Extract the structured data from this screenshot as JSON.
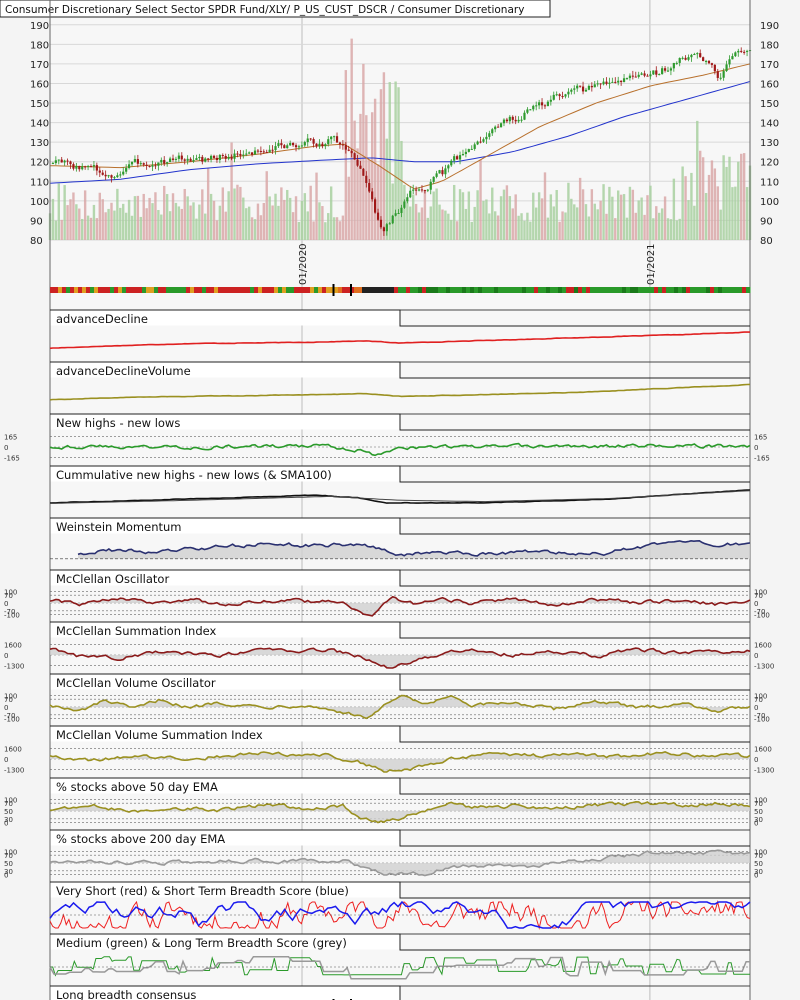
{
  "header": {
    "title": "Consumer Discretionary Select Sector SPDR Fund/XLY/ P_US_CUST_DSCR / Consumer Discretionary"
  },
  "colors": {
    "up_candle": "#2e9a2e",
    "down_candle": "#a01818",
    "vol_up": "#a8d0a0",
    "vol_down": "#d9a8a8",
    "sma_short": "#b8702c",
    "sma_long": "#2233cc",
    "advance_decline": "#e02020",
    "olive": "#9a9020",
    "green": "#2a9a2a",
    "black": "#111111",
    "navy": "#2a3070",
    "maroon": "#8a1a1a",
    "grey": "#999999",
    "blue": "#1a1aee",
    "red": "#ee2020"
  },
  "chart_data": [
    {
      "type": "candlestick",
      "title": "Consumer Discretionary Select Sector SPDR Fund/XLY/ P_US_CUST_DSCR / Consumer Discretionary",
      "ylim": [
        80,
        195
      ],
      "y_ticks": [
        80,
        90,
        100,
        110,
        120,
        130,
        140,
        150,
        160,
        170,
        180,
        190
      ],
      "x_ticks": [
        "01/2020",
        "01/2021"
      ],
      "x_tick_positions": [
        0.36,
        0.857
      ],
      "price_path": [
        [
          0,
          120
        ],
        [
          0.05,
          117
        ],
        [
          0.09,
          113
        ],
        [
          0.13,
          119
        ],
        [
          0.18,
          122
        ],
        [
          0.22,
          121
        ],
        [
          0.27,
          124
        ],
        [
          0.32,
          127
        ],
        [
          0.36,
          129
        ],
        [
          0.4,
          131
        ],
        [
          0.42,
          128
        ],
        [
          0.44,
          118
        ],
        [
          0.46,
          100
        ],
        [
          0.475,
          84
        ],
        [
          0.49,
          92
        ],
        [
          0.52,
          106
        ],
        [
          0.56,
          113
        ],
        [
          0.6,
          128
        ],
        [
          0.64,
          138
        ],
        [
          0.68,
          145
        ],
        [
          0.72,
          152
        ],
        [
          0.76,
          156
        ],
        [
          0.8,
          160
        ],
        [
          0.84,
          164
        ],
        [
          0.87,
          166
        ],
        [
          0.9,
          172
        ],
        [
          0.925,
          174
        ],
        [
          0.945,
          170
        ],
        [
          0.955,
          160
        ],
        [
          0.97,
          170
        ],
        [
          0.985,
          176
        ],
        [
          1.0,
          180
        ]
      ],
      "sma_short_path": [
        [
          0,
          118
        ],
        [
          0.1,
          117
        ],
        [
          0.2,
          120
        ],
        [
          0.3,
          124
        ],
        [
          0.38,
          128
        ],
        [
          0.42,
          129
        ],
        [
          0.47,
          118
        ],
        [
          0.52,
          106
        ],
        [
          0.56,
          110
        ],
        [
          0.62,
          122
        ],
        [
          0.7,
          138
        ],
        [
          0.78,
          150
        ],
        [
          0.86,
          159
        ],
        [
          0.93,
          164
        ],
        [
          1.0,
          170
        ]
      ],
      "sma_long_path": [
        [
          0,
          109
        ],
        [
          0.1,
          111
        ],
        [
          0.2,
          116
        ],
        [
          0.3,
          119
        ],
        [
          0.4,
          121
        ],
        [
          0.46,
          122
        ],
        [
          0.52,
          120
        ],
        [
          0.58,
          120
        ],
        [
          0.66,
          125
        ],
        [
          0.74,
          133
        ],
        [
          0.82,
          143
        ],
        [
          0.9,
          151
        ],
        [
          0.96,
          157
        ],
        [
          1.0,
          161
        ]
      ]
    },
    {
      "type": "line",
      "name": "advanceDecline",
      "y_ticks": [],
      "path": [
        [
          0,
          0.3
        ],
        [
          0.1,
          0.4
        ],
        [
          0.2,
          0.48
        ],
        [
          0.35,
          0.52
        ],
        [
          0.45,
          0.58
        ],
        [
          0.5,
          0.5
        ],
        [
          0.6,
          0.58
        ],
        [
          0.75,
          0.7
        ],
        [
          0.9,
          0.82
        ],
        [
          1.0,
          0.92
        ]
      ]
    },
    {
      "type": "line",
      "name": "advanceDeclineVolume",
      "y_ticks": [],
      "path": [
        [
          0,
          0.32
        ],
        [
          0.1,
          0.4
        ],
        [
          0.2,
          0.45
        ],
        [
          0.35,
          0.5
        ],
        [
          0.45,
          0.55
        ],
        [
          0.5,
          0.45
        ],
        [
          0.6,
          0.5
        ],
        [
          0.75,
          0.6
        ],
        [
          0.9,
          0.78
        ],
        [
          1.0,
          0.9
        ]
      ]
    },
    {
      "type": "line",
      "name": "New highs - new lows",
      "y_ticks": [
        "165",
        "0",
        "-165"
      ],
      "y_ticks_right": [
        "165",
        "0",
        "-165"
      ],
      "path": [
        [
          0,
          0.52
        ],
        [
          0.2,
          0.5
        ],
        [
          0.4,
          0.53
        ],
        [
          0.44,
          0.4
        ],
        [
          0.46,
          0.2
        ],
        [
          0.48,
          0.35
        ],
        [
          0.5,
          0.48
        ],
        [
          0.7,
          0.52
        ],
        [
          0.9,
          0.55
        ],
        [
          1.0,
          0.52
        ]
      ]
    },
    {
      "type": "line",
      "name": "Cummulative new highs - new lows (& SMA100)",
      "y_ticks": [],
      "path": [
        [
          0,
          0.35
        ],
        [
          0.2,
          0.5
        ],
        [
          0.38,
          0.65
        ],
        [
          0.44,
          0.55
        ],
        [
          0.48,
          0.35
        ],
        [
          0.62,
          0.35
        ],
        [
          0.8,
          0.5
        ],
        [
          1.0,
          0.85
        ]
      ],
      "sma_path": [
        [
          0,
          0.33
        ],
        [
          0.2,
          0.45
        ],
        [
          0.4,
          0.6
        ],
        [
          0.5,
          0.45
        ],
        [
          0.62,
          0.4
        ],
        [
          0.8,
          0.52
        ],
        [
          1.0,
          0.82
        ]
      ]
    },
    {
      "type": "line",
      "name": "Weinstein Momentum",
      "y_ticks": [],
      "path": [
        [
          0.04,
          0.4
        ],
        [
          0.08,
          0.55
        ],
        [
          0.15,
          0.45
        ],
        [
          0.22,
          0.6
        ],
        [
          0.3,
          0.78
        ],
        [
          0.38,
          0.7
        ],
        [
          0.44,
          0.78
        ],
        [
          0.5,
          0.35
        ],
        [
          0.56,
          0.45
        ],
        [
          0.62,
          0.4
        ],
        [
          0.7,
          0.5
        ],
        [
          0.76,
          0.35
        ],
        [
          0.8,
          0.45
        ],
        [
          0.86,
          0.7
        ],
        [
          0.9,
          0.85
        ],
        [
          0.95,
          0.72
        ],
        [
          1.0,
          0.8
        ]
      ]
    },
    {
      "type": "line",
      "name": "McClellan Oscillator",
      "y_ticks": [
        "100",
        "70",
        "0",
        "-70",
        "-100"
      ],
      "y_ticks_right": [
        "100",
        "70",
        "0",
        "-70",
        "-100"
      ],
      "path": [
        [
          0,
          0.6
        ],
        [
          0.05,
          0.45
        ],
        [
          0.1,
          0.7
        ],
        [
          0.15,
          0.5
        ],
        [
          0.2,
          0.65
        ],
        [
          0.25,
          0.45
        ],
        [
          0.3,
          0.6
        ],
        [
          0.36,
          0.55
        ],
        [
          0.42,
          0.6
        ],
        [
          0.44,
          0.15
        ],
        [
          0.46,
          0.05
        ],
        [
          0.47,
          0.3
        ],
        [
          0.49,
          0.75
        ],
        [
          0.52,
          0.45
        ],
        [
          0.56,
          0.7
        ],
        [
          0.6,
          0.5
        ],
        [
          0.66,
          0.62
        ],
        [
          0.72,
          0.45
        ],
        [
          0.78,
          0.65
        ],
        [
          0.84,
          0.5
        ],
        [
          0.9,
          0.58
        ],
        [
          0.95,
          0.45
        ],
        [
          1.0,
          0.55
        ]
      ]
    },
    {
      "type": "line",
      "name": "McClellan Summation Index",
      "y_ticks": [
        "1600",
        "0",
        "-1300"
      ],
      "y_ticks_right": [
        "1600",
        "0",
        "-1300"
      ],
      "path": [
        [
          0,
          0.75
        ],
        [
          0.04,
          0.45
        ],
        [
          0.1,
          0.4
        ],
        [
          0.16,
          0.6
        ],
        [
          0.24,
          0.5
        ],
        [
          0.32,
          0.72
        ],
        [
          0.4,
          0.68
        ],
        [
          0.44,
          0.45
        ],
        [
          0.48,
          0.05
        ],
        [
          0.52,
          0.25
        ],
        [
          0.56,
          0.55
        ],
        [
          0.6,
          0.72
        ],
        [
          0.66,
          0.5
        ],
        [
          0.72,
          0.62
        ],
        [
          0.78,
          0.48
        ],
        [
          0.84,
          0.7
        ],
        [
          0.9,
          0.55
        ],
        [
          1.0,
          0.65
        ]
      ]
    },
    {
      "type": "line",
      "name": "McClellan Volume Oscillator",
      "y_ticks": [
        "100",
        "70",
        "0",
        "-70",
        "-100"
      ],
      "y_ticks_right": [
        "100",
        "70",
        "0",
        "-70",
        "-100"
      ],
      "path": [
        [
          0,
          0.6
        ],
        [
          0.04,
          0.3
        ],
        [
          0.08,
          0.75
        ],
        [
          0.12,
          0.4
        ],
        [
          0.16,
          0.8
        ],
        [
          0.2,
          0.45
        ],
        [
          0.24,
          0.7
        ],
        [
          0.3,
          0.5
        ],
        [
          0.36,
          0.6
        ],
        [
          0.42,
          0.3
        ],
        [
          0.45,
          0.05
        ],
        [
          0.47,
          0.4
        ],
        [
          0.5,
          0.9
        ],
        [
          0.54,
          0.55
        ],
        [
          0.57,
          0.95
        ],
        [
          0.6,
          0.5
        ],
        [
          0.66,
          0.7
        ],
        [
          0.72,
          0.4
        ],
        [
          0.78,
          0.75
        ],
        [
          0.84,
          0.45
        ],
        [
          0.9,
          0.65
        ],
        [
          0.96,
          0.35
        ],
        [
          1.0,
          0.55
        ]
      ]
    },
    {
      "type": "line",
      "name": "McClellan Volume Summation Index",
      "y_ticks": [
        "1600",
        "0",
        "-1300"
      ],
      "y_ticks_right": [
        "1600",
        "0",
        "-1300"
      ],
      "path": [
        [
          0,
          0.65
        ],
        [
          0.06,
          0.45
        ],
        [
          0.12,
          0.58
        ],
        [
          0.2,
          0.55
        ],
        [
          0.3,
          0.72
        ],
        [
          0.4,
          0.65
        ],
        [
          0.44,
          0.4
        ],
        [
          0.48,
          0.05
        ],
        [
          0.54,
          0.2
        ],
        [
          0.58,
          0.55
        ],
        [
          0.64,
          0.72
        ],
        [
          0.7,
          0.62
        ],
        [
          0.76,
          0.68
        ],
        [
          0.82,
          0.55
        ],
        [
          0.88,
          0.75
        ],
        [
          0.94,
          0.62
        ],
        [
          1.0,
          0.6
        ]
      ]
    },
    {
      "type": "line",
      "name": "% stocks above 50 day EMA",
      "y_ticks": [
        "100",
        "70",
        "50",
        "30",
        "0"
      ],
      "y_ticks_right": [
        "100",
        "70",
        "50",
        "30",
        "0"
      ],
      "path": [
        [
          0,
          0.55
        ],
        [
          0.06,
          0.7
        ],
        [
          0.12,
          0.45
        ],
        [
          0.18,
          0.65
        ],
        [
          0.24,
          0.5
        ],
        [
          0.3,
          0.72
        ],
        [
          0.36,
          0.6
        ],
        [
          0.42,
          0.68
        ],
        [
          0.44,
          0.2
        ],
        [
          0.47,
          0.05
        ],
        [
          0.5,
          0.2
        ],
        [
          0.54,
          0.6
        ],
        [
          0.57,
          0.85
        ],
        [
          0.6,
          0.6
        ],
        [
          0.66,
          0.7
        ],
        [
          0.72,
          0.58
        ],
        [
          0.78,
          0.72
        ],
        [
          0.84,
          0.78
        ],
        [
          0.9,
          0.72
        ],
        [
          0.95,
          0.78
        ],
        [
          1.0,
          0.7
        ]
      ]
    },
    {
      "type": "line",
      "name": "% stocks above 200 day EMA",
      "y_ticks": [
        "100",
        "70",
        "50",
        "30",
        "0"
      ],
      "y_ticks_right": [
        "100",
        "70",
        "50",
        "30",
        "0"
      ],
      "path": [
        [
          0,
          0.55
        ],
        [
          0.06,
          0.6
        ],
        [
          0.12,
          0.5
        ],
        [
          0.2,
          0.55
        ],
        [
          0.3,
          0.6
        ],
        [
          0.38,
          0.55
        ],
        [
          0.42,
          0.6
        ],
        [
          0.45,
          0.25
        ],
        [
          0.48,
          0.05
        ],
        [
          0.54,
          0.1
        ],
        [
          0.57,
          0.35
        ],
        [
          0.62,
          0.4
        ],
        [
          0.68,
          0.35
        ],
        [
          0.74,
          0.55
        ],
        [
          0.8,
          0.72
        ],
        [
          0.86,
          0.88
        ],
        [
          0.92,
          0.9
        ],
        [
          1.0,
          0.88
        ]
      ]
    },
    {
      "type": "line",
      "name": "Very Short (red) & Short Term Breadth Score (blue)",
      "y_ticks": [],
      "series": [
        {
          "name": "Very Short",
          "seed": 11
        },
        {
          "name": "Short Term",
          "seed": 29
        }
      ]
    },
    {
      "type": "line",
      "name": "Medium (green) & Long Term Breadth Score (grey)",
      "y_ticks": [],
      "series": [
        {
          "name": "Medium",
          "seed": 37
        },
        {
          "name": "Long Term",
          "seed": 53
        }
      ]
    },
    {
      "type": "heatmap",
      "name": "Long breadth consensus",
      "y_ticks": []
    }
  ]
}
